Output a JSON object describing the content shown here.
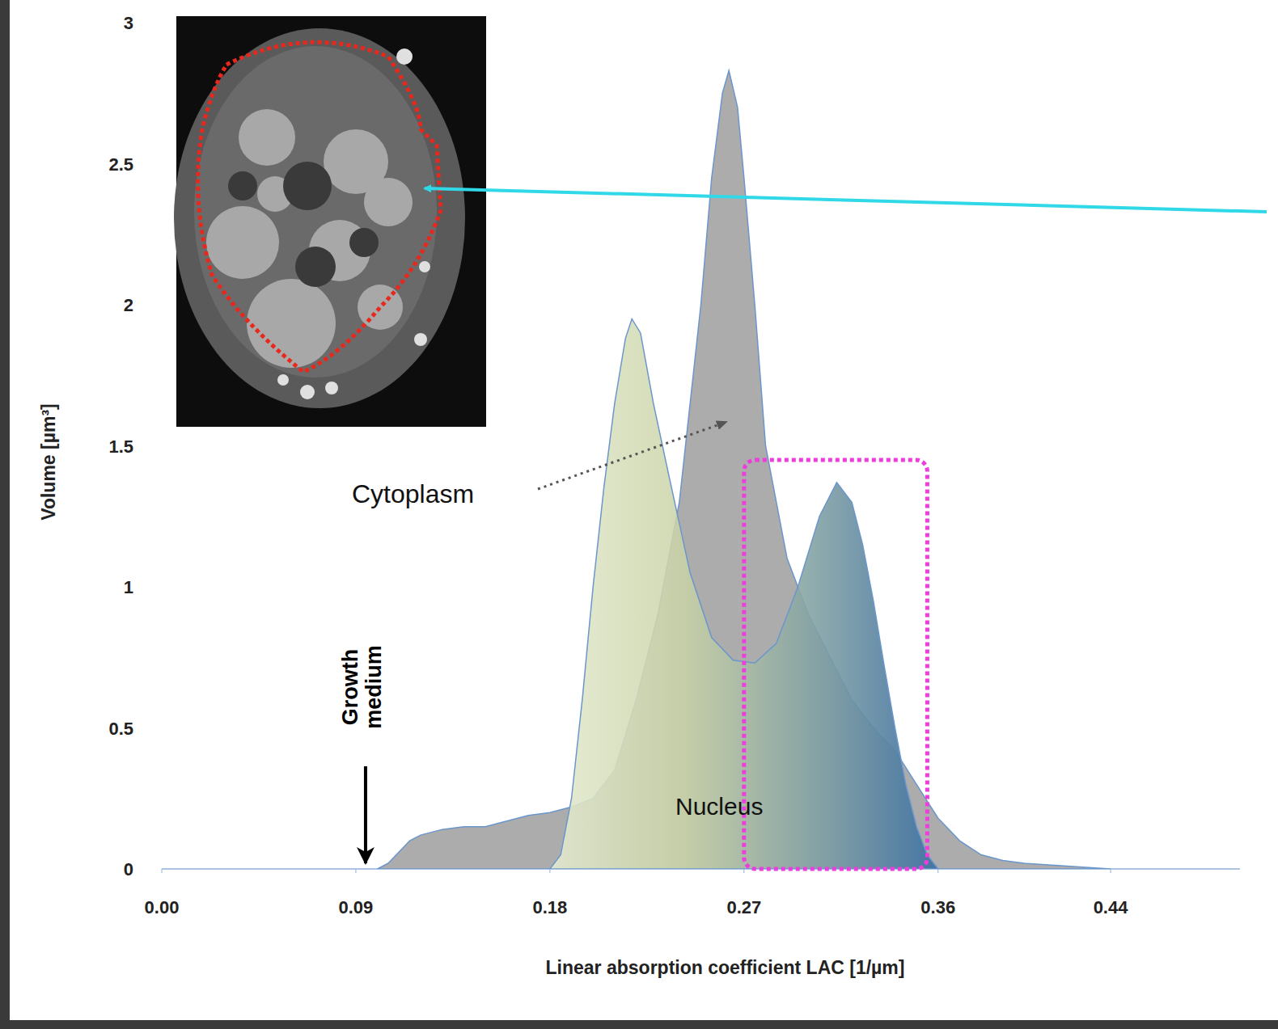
{
  "chart_data": {
    "type": "area",
    "x_label": "Linear absorption coefficient LAC [1/µm]",
    "y_label": "Volume [µm³]",
    "xlim": [
      0,
      0.5
    ],
    "ylim": [
      0,
      3
    ],
    "xticks": [
      {
        "value": 0,
        "label": "0.00"
      },
      0.09,
      0.18,
      0.27,
      0.36,
      0.44
    ],
    "yticks": [
      0,
      0.5,
      1,
      1.5,
      2,
      2.5,
      3
    ],
    "grid": false,
    "series": [
      {
        "color": "#a8a8a8",
        "x": [
          0.1,
          0.105,
          0.11,
          0.115,
          0.12,
          0.13,
          0.14,
          0.15,
          0.16,
          0.17,
          0.18,
          0.19,
          0.2,
          0.21,
          0.22,
          0.23,
          0.24,
          0.25,
          0.255,
          0.26,
          0.263,
          0.267,
          0.27,
          0.275,
          0.28,
          0.29,
          0.3,
          0.31,
          0.32,
          0.33,
          0.34,
          0.35,
          0.36,
          0.37,
          0.38,
          0.39,
          0.4,
          0.42,
          0.44
        ],
        "values": [
          0,
          0.02,
          0.06,
          0.1,
          0.12,
          0.14,
          0.15,
          0.15,
          0.17,
          0.19,
          0.2,
          0.22,
          0.25,
          0.35,
          0.6,
          0.9,
          1.3,
          2.0,
          2.45,
          2.75,
          2.83,
          2.7,
          2.45,
          2.0,
          1.5,
          1.1,
          0.9,
          0.75,
          0.6,
          0.5,
          0.42,
          0.3,
          0.18,
          0.1,
          0.05,
          0.03,
          0.02,
          0.01,
          0
        ]
      },
      {
        "color": "#3f72a3",
        "x": [
          0.18,
          0.185,
          0.19,
          0.195,
          0.2,
          0.205,
          0.21,
          0.215,
          0.218,
          0.222,
          0.228,
          0.235,
          0.245,
          0.255,
          0.265,
          0.275,
          0.285,
          0.295,
          0.305,
          0.313,
          0.32,
          0.325,
          0.33,
          0.335,
          0.34,
          0.345,
          0.35,
          0.355,
          0.36
        ],
        "values": [
          0,
          0.05,
          0.25,
          0.6,
          1.0,
          1.35,
          1.65,
          1.88,
          1.95,
          1.9,
          1.65,
          1.4,
          1.05,
          0.82,
          0.74,
          0.73,
          0.8,
          1.0,
          1.25,
          1.37,
          1.3,
          1.15,
          0.95,
          0.72,
          0.5,
          0.3,
          0.15,
          0.05,
          0
        ]
      }
    ],
    "annotations": [
      {
        "text": "Cytoplasm"
      },
      {
        "text": "Nucleus"
      },
      {
        "text": "Growth medium",
        "x": 0.09
      },
      {
        "region": {
          "x": [
            0.27,
            0.355
          ],
          "y": [
            0,
            1.45
          ]
        }
      }
    ]
  }
}
